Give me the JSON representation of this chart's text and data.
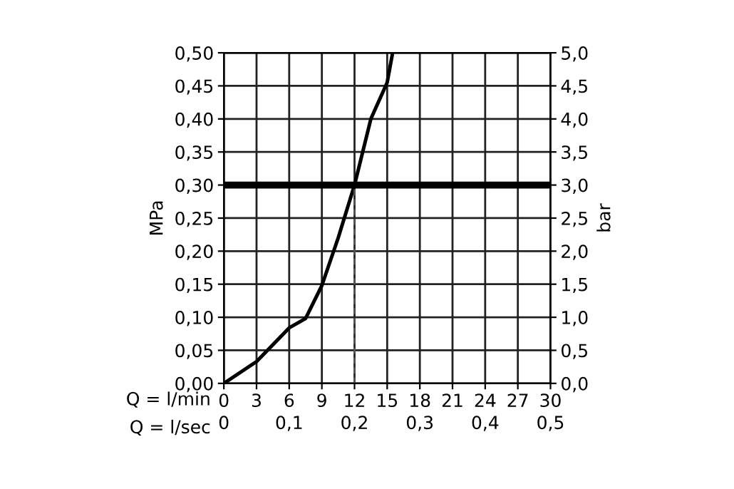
{
  "chart_data": {
    "type": "line",
    "xlabel": "Q = l/min",
    "x2label": "Q = l/sec",
    "ylabel": "MPa",
    "y2label": "bar",
    "series": [
      {
        "color": "#000000",
        "x": [
          0,
          3,
          6,
          7.5,
          9,
          10.5,
          12,
          13.5,
          15,
          15.5
        ],
        "values": [
          0,
          0.033,
          0.084,
          0.098,
          0.148,
          0.22,
          0.3,
          0.4,
          0.455,
          0.5
        ]
      },
      {
        "color": "#555555",
        "line_style": "dashed",
        "x": [
          12,
          12
        ],
        "values": [
          0,
          0.3
        ]
      }
    ],
    "ref_lines": [
      {
        "axis": "y",
        "value": 0.3,
        "color": "#000000"
      }
    ],
    "xlim": [
      0,
      30
    ],
    "xticks": [
      0,
      3,
      6,
      9,
      12,
      15,
      18,
      21,
      24,
      27,
      30
    ],
    "x2lim": [
      0,
      0.5
    ],
    "x2ticks": [
      0,
      {
        "value": 0.1,
        "label": "0,1"
      },
      {
        "value": 0.2,
        "label": "0,2"
      },
      {
        "value": 0.3,
        "label": "0,3"
      },
      {
        "value": 0.4,
        "label": "0,4"
      },
      {
        "value": 0.5,
        "label": "0,5"
      }
    ],
    "ylim": [
      0,
      0.5
    ],
    "yticks": [
      {
        "value": 0,
        "label": "0,00"
      },
      {
        "value": 0.05,
        "label": "0,05"
      },
      {
        "value": 0.1,
        "label": "0,10"
      },
      {
        "value": 0.15,
        "label": "0,15"
      },
      {
        "value": 0.2,
        "label": "0,20"
      },
      {
        "value": 0.25,
        "label": "0,25"
      },
      {
        "value": 0.3,
        "label": "0,30"
      },
      {
        "value": 0.35,
        "label": "0,35"
      },
      {
        "value": 0.4,
        "label": "0,40"
      },
      {
        "value": 0.45,
        "label": "0,45"
      },
      {
        "value": 0.5,
        "label": "0,50"
      }
    ],
    "y2lim": [
      0,
      5
    ],
    "y2ticks": [
      {
        "value": 0,
        "label": "0,0"
      },
      {
        "value": 0.5,
        "label": "0,5"
      },
      {
        "value": 1,
        "label": "1,0"
      },
      {
        "value": 1.5,
        "label": "1,5"
      },
      {
        "value": 2,
        "label": "2,0"
      },
      {
        "value": 2.5,
        "label": "2,5"
      },
      {
        "value": 3,
        "label": "3,0"
      },
      {
        "value": 3.5,
        "label": "3,5"
      },
      {
        "value": 4,
        "label": "4,0"
      },
      {
        "value": 4.5,
        "label": "4,5"
      },
      {
        "value": 5,
        "label": "5,0"
      }
    ],
    "grid": true,
    "legend": false
  }
}
